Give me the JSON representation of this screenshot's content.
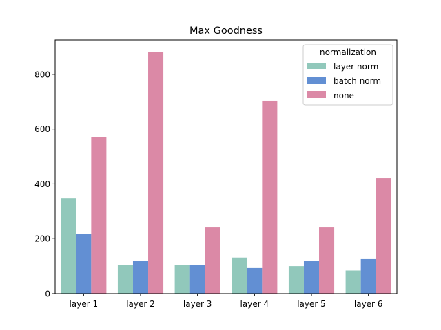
{
  "chart_data": {
    "type": "bar",
    "title": "Max Goodness",
    "xlabel": "",
    "ylabel": "",
    "categories": [
      "layer 1",
      "layer 2",
      "layer 3",
      "layer 4",
      "layer 5",
      "layer 6"
    ],
    "series": [
      {
        "name": "layer norm",
        "color": "#91c8bb",
        "values": [
          348,
          105,
          103,
          131,
          100,
          84
        ]
      },
      {
        "name": "batch norm",
        "color": "#628fd3",
        "values": [
          218,
          120,
          103,
          93,
          118,
          128
        ]
      },
      {
        "name": "none",
        "color": "#db89a6",
        "values": [
          570,
          882,
          243,
          702,
          243,
          421
        ]
      }
    ],
    "ylim": [
      0,
      925
    ],
    "yticks": [
      0,
      200,
      400,
      600,
      800
    ],
    "grid": false,
    "legend": {
      "title": "normalization",
      "placement": "top-right"
    }
  }
}
